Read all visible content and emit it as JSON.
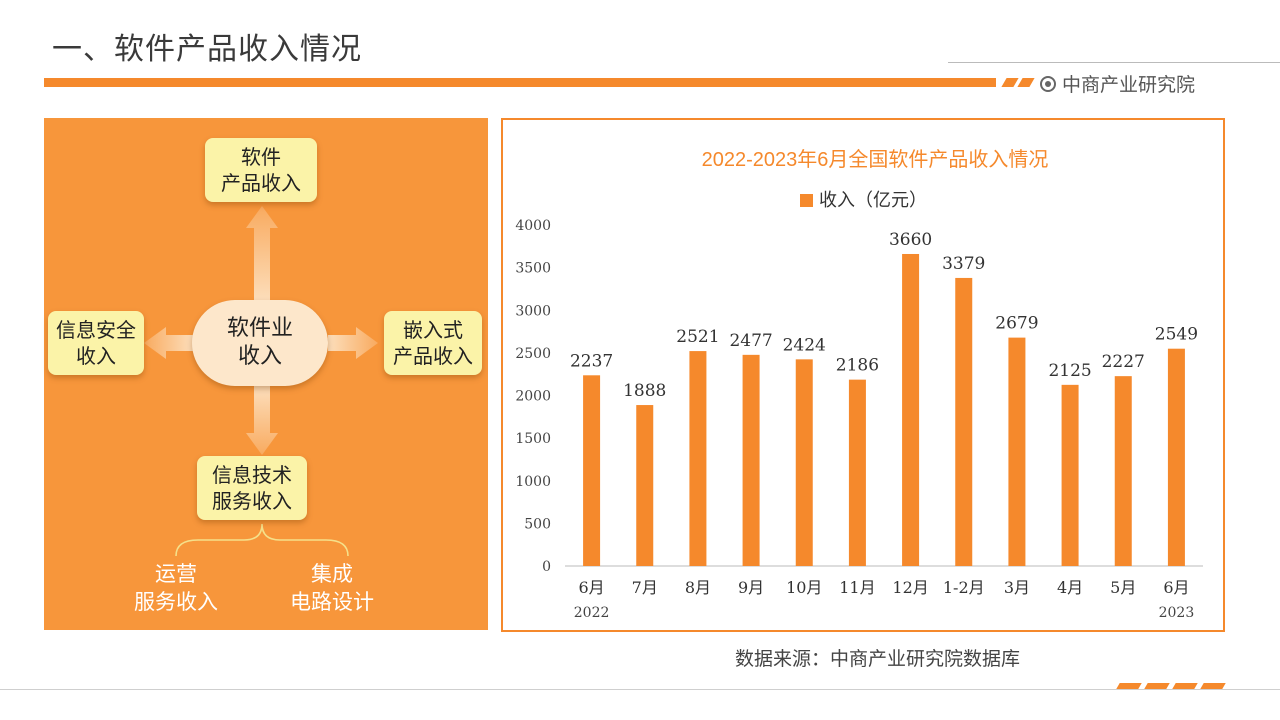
{
  "header": {
    "title": "一、软件产品收入情况",
    "brand": "中商产业研究院",
    "accent_color": "#f5892c"
  },
  "diagram": {
    "center": [
      "软件业",
      "收入"
    ],
    "top": [
      "软件",
      "产品收入"
    ],
    "left": [
      "信息安全",
      "收入"
    ],
    "right": [
      "嵌入式",
      "产品收入"
    ],
    "bottom": [
      "信息技术",
      "服务收入"
    ],
    "sub_left": [
      "运营",
      "服务收入"
    ],
    "sub_right": [
      "集成",
      "电路设计"
    ],
    "panel_color": "#f7963b",
    "card_color": "#fbf3a8"
  },
  "chart_data": {
    "type": "bar",
    "title": "2022-2023年6月全国软件产品收入情况",
    "legend": "收入（亿元）",
    "legend_position": "top",
    "categories": [
      "6月",
      "7月",
      "8月",
      "9月",
      "10月",
      "11月",
      "12月",
      "1-2月",
      "3月",
      "4月",
      "5月",
      "6月"
    ],
    "year_labels": [
      {
        "index": 0,
        "label": "2022"
      },
      {
        "index": 11,
        "label": "2023"
      }
    ],
    "series": [
      {
        "name": "收入（亿元）",
        "values": [
          2237,
          1888,
          2521,
          2477,
          2424,
          2186,
          3660,
          3379,
          2679,
          2125,
          2227,
          2549
        ]
      }
    ],
    "ylim": [
      0,
      4000
    ],
    "yticks": [
      0,
      500,
      1000,
      1500,
      2000,
      2500,
      3000,
      3500,
      4000
    ],
    "grid": false,
    "bar_color": "#f5892c"
  },
  "footer": {
    "source": "数据来源：中商产业研究院数据库"
  }
}
